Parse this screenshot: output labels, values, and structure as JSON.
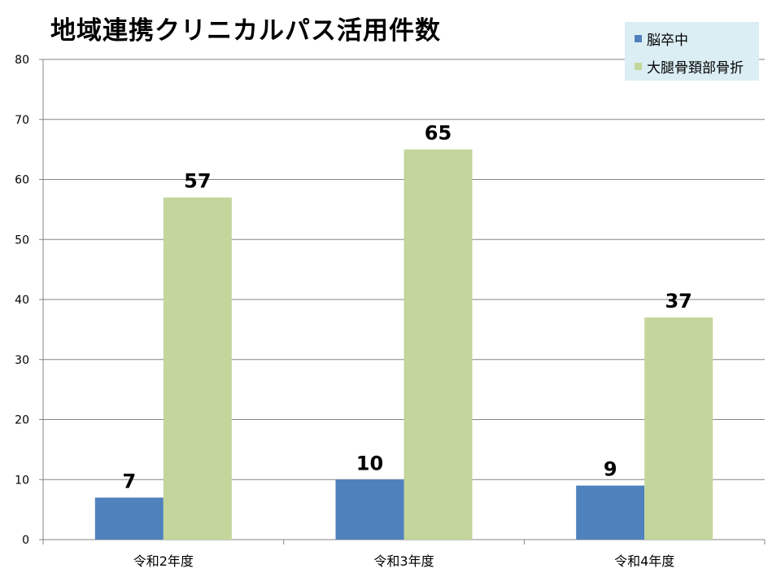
{
  "chart_data": {
    "type": "bar",
    "title": "地域連携クリニカルパス活用件数",
    "xlabel": "",
    "ylabel": "",
    "categories": [
      "令和2年度",
      "令和3年度",
      "令和4年度"
    ],
    "series": [
      {
        "name": "脳卒中",
        "values": [
          7,
          10,
          9
        ],
        "color": "#4f81bd"
      },
      {
        "name": "大腿骨頚部骨折",
        "values": [
          57,
          65,
          37
        ],
        "color": "#c3d69b"
      }
    ],
    "ylim": [
      0,
      80
    ],
    "yticks": [
      0,
      10,
      20,
      30,
      40,
      50,
      60,
      70,
      80
    ],
    "grid": true,
    "legend_position": "top-right",
    "data_labels": true
  }
}
